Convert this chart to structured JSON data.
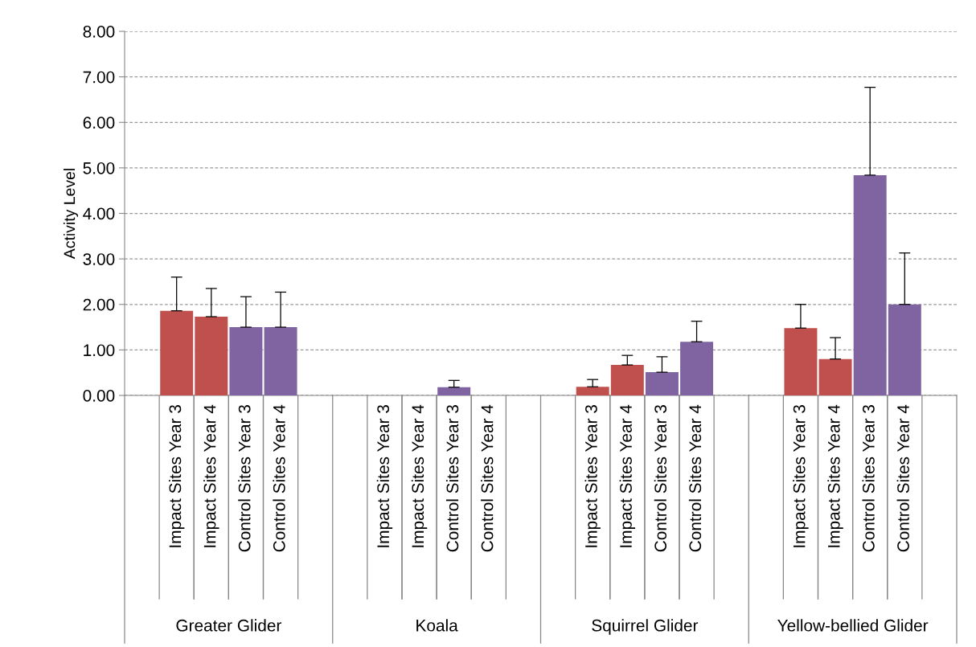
{
  "chart_data": {
    "type": "bar",
    "ylabel": "Activity Level",
    "categories": [
      null,
      "Impact Sites Year 3",
      "Impact Sites Year 4",
      "Control Sites Year 3",
      "Control Sites Year 4",
      null,
      null,
      "Impact Sites Year 3",
      "Impact Sites Year 4",
      "Control Sites Year 3",
      "Control Sites Year 4",
      null,
      null,
      "Impact Sites Year 3",
      "Impact Sites Year 4",
      "Control Sites Year 3",
      "Control Sites Year 4",
      null,
      null,
      "Impact Sites Year 3",
      "Impact Sites Year 4",
      "Control Sites Year 3",
      "Control Sites Year 4",
      null
    ],
    "values": [
      null,
      1.86,
      1.73,
      1.5,
      1.5,
      null,
      null,
      0,
      0,
      0.18,
      0,
      null,
      null,
      0.19,
      0.67,
      0.51,
      1.18,
      null,
      null,
      1.48,
      0.8,
      4.84,
      2.0,
      null
    ],
    "errors": [
      null,
      [
        1.86,
        2.6
      ],
      [
        1.73,
        2.35
      ],
      [
        1.5,
        2.17
      ],
      [
        1.5,
        2.27
      ],
      null,
      null,
      null,
      null,
      [
        0.18,
        0.33
      ],
      null,
      null,
      null,
      [
        0.19,
        0.35
      ],
      [
        0.67,
        0.88
      ],
      [
        0.51,
        0.85
      ],
      [
        1.18,
        1.63
      ],
      null,
      null,
      [
        1.48,
        2.0
      ],
      [
        0.8,
        1.27
      ],
      [
        4.84,
        6.77
      ],
      [
        2.0,
        3.13
      ],
      null
    ],
    "colors": [
      null,
      "#c0504d",
      "#c0504d",
      "#8064a2",
      "#8064a2",
      null,
      null,
      "#c0504d",
      "#c0504d",
      "#8064a2",
      "#8064a2",
      null,
      null,
      "#c0504d",
      "#c0504d",
      "#8064a2",
      "#8064a2",
      null,
      null,
      "#c0504d",
      "#c0504d",
      "#8064a2",
      "#8064a2",
      null
    ],
    "annotations": [
      "Greater Glider",
      "Koala",
      "Squirrel Glider",
      "Yellow-bellied Glider"
    ],
    "ylim": [
      0,
      8
    ],
    "yticks": [
      {
        "value": 0,
        "label": "0.00"
      },
      {
        "value": 1,
        "label": "1.00"
      },
      {
        "value": 2,
        "label": "2.00"
      },
      {
        "value": 3,
        "label": "3.00"
      },
      {
        "value": 4,
        "label": "4.00"
      },
      {
        "value": 5,
        "label": "5.00"
      },
      {
        "value": 6,
        "label": "6.00"
      },
      {
        "value": 7,
        "label": "7.00"
      },
      {
        "value": 8,
        "label": "8.00"
      }
    ],
    "grid": "y"
  }
}
